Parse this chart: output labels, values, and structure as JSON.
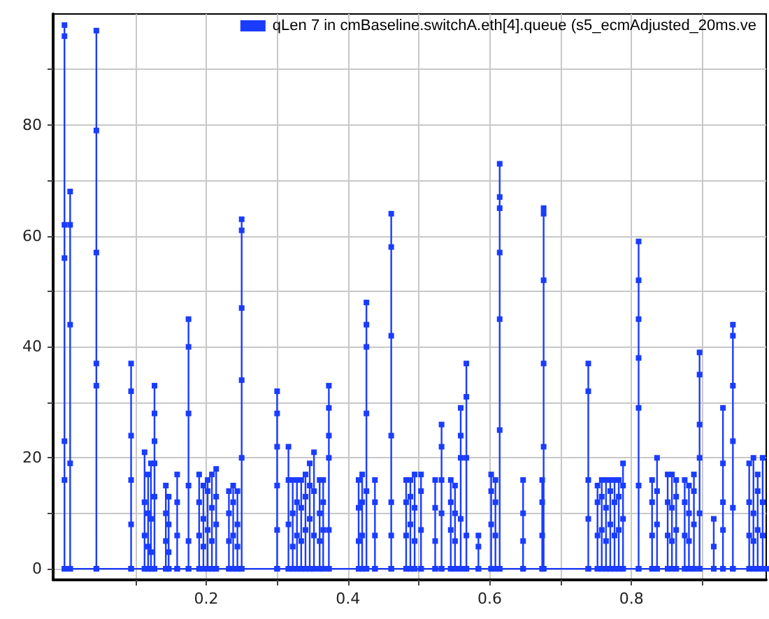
{
  "chart_data": {
    "type": "line",
    "marker": "square",
    "line_style": "solid",
    "grid": true,
    "legend": "top right",
    "xlim": [
      -0.016,
      0.99
    ],
    "ylim": [
      -2,
      100
    ],
    "xticks": [
      {
        "value": 0.1,
        "label": null
      },
      0.2,
      {
        "value": 0.3,
        "label": null
      },
      0.4,
      {
        "value": 0.5,
        "label": null
      },
      0.6,
      {
        "value": 0.7,
        "label": null
      },
      0.8,
      {
        "value": 0.9,
        "label": null
      }
    ],
    "yticks": [
      0,
      {
        "value": 10,
        "label": null
      },
      20,
      {
        "value": 30,
        "label": null
      },
      40,
      {
        "value": 50,
        "label": null
      },
      60,
      {
        "value": 70,
        "label": null
      },
      80,
      {
        "value": 90,
        "label": null
      }
    ],
    "series": [
      {
        "name": "qLen 7 in cmBaseline.switchA.eth[4].queue (s5_ecmAdjusted_20ms.ve",
        "color": "#1a3cff",
        "x": [
          0,
          0,
          0,
          0,
          0,
          0,
          0,
          0,
          0.008,
          0.008,
          0.008,
          0.008,
          0.008,
          0.008,
          0.045,
          0.045,
          0.045,
          0.045,
          0.045,
          0.045,
          0.045,
          0.094,
          0.094,
          0.094,
          0.094,
          0.094,
          0.094,
          0.094,
          0.113,
          0.113,
          0.113,
          0.113,
          0.113,
          0.118,
          0.118,
          0.118,
          0.118,
          0.118,
          0.122,
          0.122,
          0.122,
          0.122,
          0.122,
          0.127,
          0.127,
          0.127,
          0.127,
          0.127,
          0.127,
          0.127,
          0.143,
          0.143,
          0.143,
          0.143,
          0.143,
          0.147,
          0.147,
          0.147,
          0.147,
          0.147,
          0.159,
          0.159,
          0.159,
          0.159,
          0.159,
          0.175,
          0.175,
          0.175,
          0.175,
          0.175,
          0.175,
          0.175,
          0.19,
          0.19,
          0.19,
          0.19,
          0.19,
          0.196,
          0.196,
          0.196,
          0.196,
          0.196,
          0.202,
          0.202,
          0.202,
          0.202,
          0.202,
          0.208,
          0.208,
          0.208,
          0.208,
          0.208,
          0.214,
          0.214,
          0.214,
          0.214,
          0.214,
          0.232,
          0.232,
          0.232,
          0.232,
          0.232,
          0.238,
          0.238,
          0.238,
          0.238,
          0.238,
          0.244,
          0.244,
          0.244,
          0.244,
          0.244,
          0.25,
          0.25,
          0.25,
          0.25,
          0.25,
          0.25,
          0.25,
          0.3,
          0.3,
          0.3,
          0.3,
          0.3,
          0.3,
          0.3,
          0.316,
          0.316,
          0.316,
          0.316,
          0.316,
          0.322,
          0.322,
          0.322,
          0.322,
          0.322,
          0.328,
          0.328,
          0.328,
          0.328,
          0.328,
          0.334,
          0.334,
          0.334,
          0.334,
          0.334,
          0.34,
          0.34,
          0.34,
          0.34,
          0.34,
          0.346,
          0.346,
          0.346,
          0.346,
          0.346,
          0.352,
          0.352,
          0.352,
          0.352,
          0.352,
          0.36,
          0.36,
          0.36,
          0.36,
          0.36,
          0.365,
          0.365,
          0.365,
          0.365,
          0.365,
          0.373,
          0.373,
          0.373,
          0.373,
          0.373,
          0.373,
          0.373,
          0.415,
          0.415,
          0.415,
          0.415,
          0.415,
          0.42,
          0.42,
          0.42,
          0.42,
          0.42,
          0.426,
          0.426,
          0.426,
          0.426,
          0.426,
          0.426,
          0.426,
          0.438,
          0.438,
          0.438,
          0.438,
          0.438,
          0.461,
          0.461,
          0.461,
          0.461,
          0.461,
          0.461,
          0.461,
          0.461,
          0.482,
          0.482,
          0.482,
          0.482,
          0.482,
          0.488,
          0.488,
          0.488,
          0.488,
          0.488,
          0.494,
          0.494,
          0.494,
          0.494,
          0.494,
          0.503,
          0.503,
          0.503,
          0.503,
          0.503,
          0.523,
          0.523,
          0.523,
          0.523,
          0.523,
          0.532,
          0.532,
          0.532,
          0.532,
          0.532,
          0.532,
          0.545,
          0.545,
          0.545,
          0.545,
          0.545,
          0.551,
          0.551,
          0.551,
          0.551,
          0.551,
          0.559,
          0.559,
          0.559,
          0.559,
          0.559,
          0.559,
          0.567,
          0.567,
          0.567,
          0.567,
          0.567,
          0.567,
          0.584,
          0.584,
          0.584,
          0.584,
          0.602,
          0.602,
          0.602,
          0.602,
          0.602,
          0.608,
          0.608,
          0.608,
          0.608,
          0.608,
          0.614,
          0.614,
          0.614,
          0.614,
          0.614,
          0.614,
          0.614,
          0.614,
          0.647,
          0.647,
          0.647,
          0.647,
          0.647,
          0.674,
          0.674,
          0.674,
          0.674,
          0.674,
          0.676,
          0.676,
          0.676,
          0.676,
          0.676,
          0.676,
          0.676,
          0.739,
          0.739,
          0.739,
          0.739,
          0.739,
          0.739,
          0.752,
          0.752,
          0.752,
          0.752,
          0.752,
          0.758,
          0.758,
          0.758,
          0.758,
          0.758,
          0.764,
          0.764,
          0.764,
          0.764,
          0.764,
          0.77,
          0.77,
          0.77,
          0.77,
          0.77,
          0.776,
          0.776,
          0.776,
          0.776,
          0.776,
          0.782,
          0.782,
          0.782,
          0.782,
          0.782,
          0.788,
          0.788,
          0.788,
          0.788,
          0.788,
          0.81,
          0.81,
          0.81,
          0.81,
          0.81,
          0.81,
          0.81,
          0.81,
          0.829,
          0.829,
          0.829,
          0.829,
          0.829,
          0.836,
          0.836,
          0.836,
          0.836,
          0.836,
          0.851,
          0.851,
          0.851,
          0.851,
          0.851,
          0.857,
          0.857,
          0.857,
          0.857,
          0.857,
          0.863,
          0.863,
          0.863,
          0.863,
          0.863,
          0.875,
          0.875,
          0.875,
          0.875,
          0.875,
          0.881,
          0.881,
          0.881,
          0.881,
          0.881,
          0.888,
          0.888,
          0.888,
          0.888,
          0.888,
          0.896,
          0.896,
          0.896,
          0.896,
          0.896,
          0.896,
          0.896,
          0.916,
          0.916,
          0.916,
          0.916,
          0.929,
          0.929,
          0.929,
          0.929,
          0.929,
          0.929,
          0.943,
          0.943,
          0.943,
          0.943,
          0.943,
          0.943,
          0.943,
          0.966,
          0.966,
          0.966,
          0.966,
          0.966,
          0.972,
          0.972,
          0.972,
          0.972,
          0.972,
          0.978,
          0.978,
          0.978,
          0.978,
          0.978,
          0.985,
          0.985,
          0.985,
          0.985,
          0.985,
          0.99
        ],
        "values": [
          0,
          16,
          23,
          56,
          62,
          96,
          98,
          0,
          0,
          19,
          44,
          62,
          68,
          0,
          0,
          33,
          37,
          57,
          79,
          97,
          0,
          0,
          8,
          16,
          24,
          32,
          37,
          0,
          0,
          6,
          12,
          21,
          0,
          0,
          4,
          10,
          17,
          0,
          0,
          3,
          9,
          19,
          0,
          0,
          13,
          19,
          23,
          28,
          33,
          0,
          0,
          5,
          10,
          15,
          0,
          0,
          3,
          8,
          13,
          0,
          0,
          6,
          12,
          17,
          0,
          0,
          5,
          15,
          28,
          40,
          45,
          0,
          0,
          6,
          12,
          17,
          0,
          0,
          4,
          9,
          15,
          0,
          0,
          7,
          14,
          16,
          0,
          0,
          5,
          11,
          17,
          0,
          0,
          8,
          13,
          18,
          0,
          0,
          5,
          10,
          14,
          0,
          0,
          6,
          12,
          15,
          0,
          0,
          4,
          8,
          14,
          0,
          0,
          20,
          34,
          47,
          61,
          63,
          0,
          0,
          7,
          15,
          22,
          28,
          32,
          0,
          0,
          8,
          16,
          22,
          0,
          0,
          4,
          10,
          16,
          0,
          0,
          6,
          12,
          16,
          0,
          0,
          5,
          11,
          16,
          0,
          0,
          7,
          13,
          17,
          0,
          0,
          9,
          15,
          19,
          0,
          0,
          6,
          14,
          21,
          0,
          0,
          5,
          10,
          16,
          0,
          0,
          7,
          12,
          16,
          0,
          0,
          7,
          20,
          24,
          29,
          33,
          0,
          0,
          5,
          11,
          16,
          0,
          0,
          6,
          12,
          17,
          0,
          0,
          14,
          28,
          40,
          44,
          48,
          0,
          0,
          6,
          12,
          16,
          0,
          0,
          6,
          12,
          24,
          42,
          58,
          64,
          0,
          0,
          6,
          12,
          16,
          0,
          0,
          8,
          13,
          16,
          0,
          0,
          5,
          11,
          17,
          0,
          0,
          7,
          14,
          17,
          0,
          0,
          5,
          11,
          16,
          0,
          0,
          10,
          16,
          22,
          26,
          0,
          0,
          7,
          12,
          16,
          0,
          0,
          5,
          10,
          15,
          0,
          0,
          9,
          20,
          24,
          29,
          0,
          0,
          6,
          20,
          31,
          37,
          0,
          0,
          4,
          6,
          0,
          0,
          8,
          14,
          17,
          0,
          0,
          6,
          12,
          16,
          0,
          0,
          25,
          45,
          57,
          65,
          67,
          73,
          0,
          0,
          5,
          10,
          16,
          0,
          0,
          6,
          12,
          16,
          0,
          0,
          22,
          37,
          52,
          64,
          65,
          0,
          0,
          9,
          16,
          32,
          37,
          0,
          0,
          6,
          12,
          15,
          0,
          0,
          7,
          13,
          16,
          0,
          0,
          5,
          11,
          16,
          0,
          0,
          8,
          14,
          16,
          0,
          0,
          6,
          12,
          16,
          0,
          0,
          7,
          13,
          16,
          0,
          0,
          9,
          15,
          19,
          0,
          0,
          15,
          29,
          38,
          45,
          52,
          59,
          0,
          0,
          6,
          12,
          16,
          0,
          0,
          8,
          14,
          20,
          0,
          0,
          6,
          12,
          17,
          0,
          0,
          5,
          11,
          17,
          0,
          0,
          7,
          13,
          16,
          0,
          0,
          6,
          12,
          16,
          0,
          0,
          5,
          10,
          15,
          0,
          0,
          8,
          14,
          17,
          0,
          0,
          10,
          20,
          26,
          35,
          39,
          0,
          0,
          4,
          9,
          0,
          0,
          7,
          12,
          19,
          29,
          0,
          0,
          11,
          23,
          33,
          42,
          44,
          0,
          0,
          6,
          12,
          19,
          0,
          0,
          5,
          10,
          20,
          0,
          0,
          7,
          14,
          17,
          0,
          0,
          6,
          12,
          20,
          0,
          0
        ]
      }
    ]
  }
}
